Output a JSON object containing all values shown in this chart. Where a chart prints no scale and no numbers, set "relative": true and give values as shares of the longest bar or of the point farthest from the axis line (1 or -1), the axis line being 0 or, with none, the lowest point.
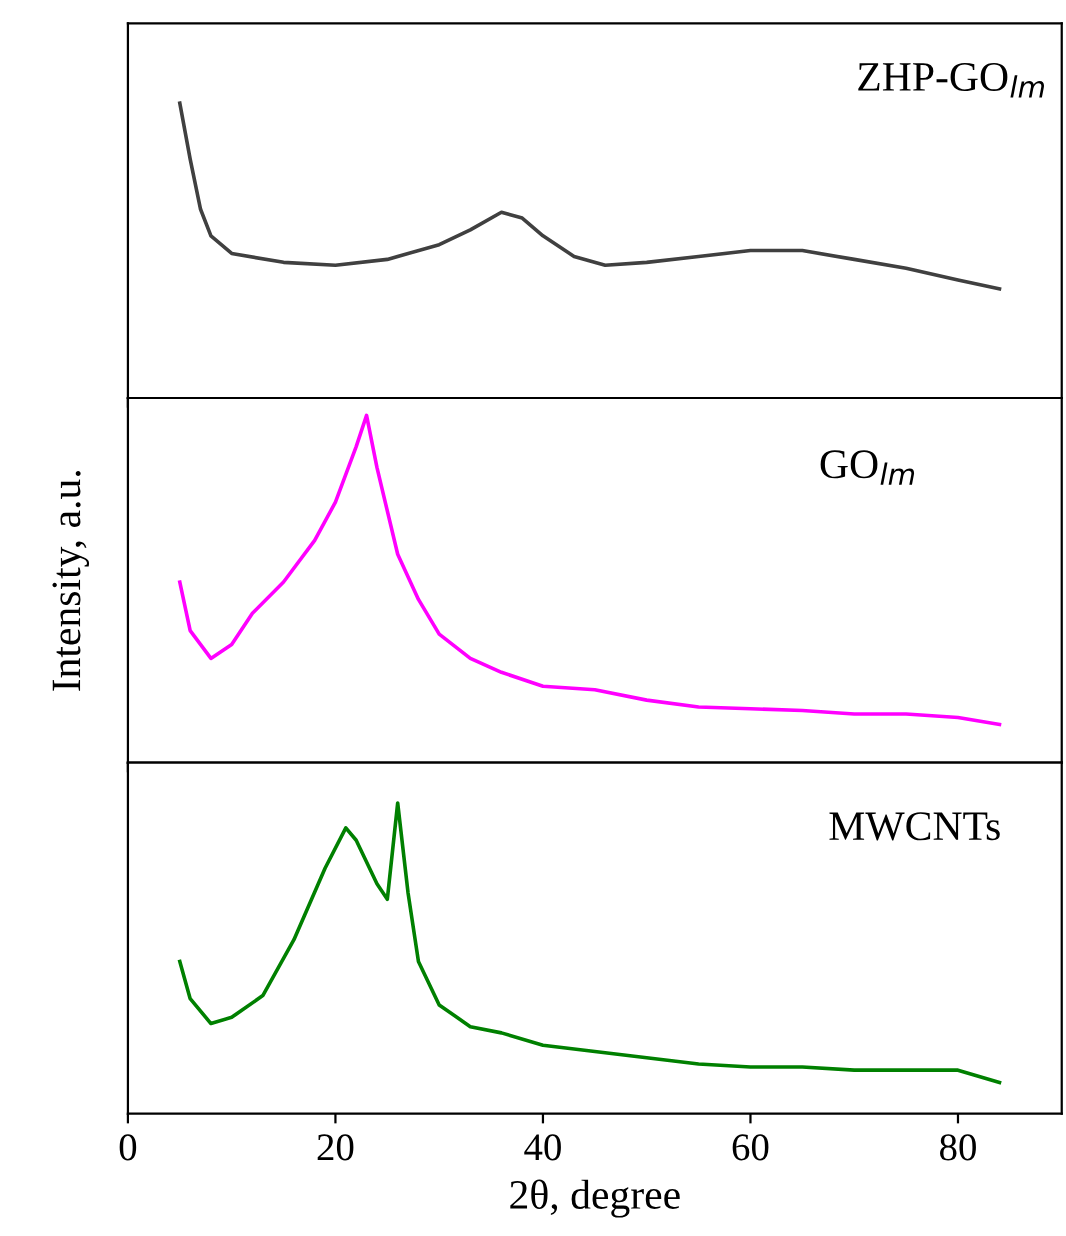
{
  "chart_data": [
    {
      "type": "line",
      "relative": true,
      "tick_labels": false,
      "xlim": [
        0,
        90
      ],
      "xticks": [
        0,
        20,
        40,
        60,
        80
      ],
      "annotations": [
        "ZHP-GO$_{lm}$"
      ],
      "x": [
        5,
        6,
        7,
        8,
        10,
        15,
        20,
        25,
        30,
        33,
        36,
        38,
        40,
        43,
        46,
        50,
        55,
        60,
        65,
        70,
        75,
        80,
        84
      ],
      "series": [
        {
          "color": "#404040",
          "values": [
            1.0,
            0.81,
            0.64,
            0.55,
            0.49,
            0.46,
            0.45,
            0.47,
            0.52,
            0.57,
            0.63,
            0.61,
            0.55,
            0.48,
            0.45,
            0.46,
            0.48,
            0.5,
            0.5,
            0.47,
            0.44,
            0.4,
            0.37
          ]
        }
      ]
    },
    {
      "type": "line",
      "relative": true,
      "tick_labels": false,
      "xlim": [
        0,
        90
      ],
      "xticks": [
        0,
        20,
        40,
        60,
        80
      ],
      "ylabel": "Intensity, a.u.",
      "annotations": [
        "GO$_{lm}$"
      ],
      "x": [
        5,
        6,
        8,
        10,
        12,
        15,
        18,
        20,
        22,
        23,
        24,
        26,
        28,
        30,
        33,
        36,
        40,
        45,
        50,
        55,
        60,
        65,
        70,
        75,
        80,
        84
      ],
      "series": [
        {
          "color": "#ff00ff",
          "values": [
            0.52,
            0.38,
            0.3,
            0.34,
            0.43,
            0.52,
            0.64,
            0.75,
            0.91,
            1.0,
            0.85,
            0.6,
            0.47,
            0.37,
            0.3,
            0.26,
            0.22,
            0.21,
            0.18,
            0.16,
            0.155,
            0.15,
            0.14,
            0.14,
            0.13,
            0.11
          ]
        }
      ]
    },
    {
      "type": "line",
      "relative": true,
      "tick_labels": "x",
      "xlim": [
        0,
        90
      ],
      "xticks": [
        0,
        20,
        40,
        60,
        80
      ],
      "xlabel": "2θ, degree",
      "annotations": [
        "MWCNTs"
      ],
      "x": [
        5,
        6,
        8,
        10,
        13,
        16,
        19,
        21,
        22,
        24,
        25,
        26,
        27,
        28,
        30,
        33,
        36,
        40,
        45,
        50,
        55,
        60,
        65,
        70,
        75,
        80,
        84
      ],
      "series": [
        {
          "color": "#008000",
          "values": [
            0.49,
            0.37,
            0.29,
            0.31,
            0.38,
            0.56,
            0.79,
            0.92,
            0.88,
            0.74,
            0.69,
            1.0,
            0.71,
            0.49,
            0.35,
            0.28,
            0.26,
            0.22,
            0.2,
            0.18,
            0.16,
            0.15,
            0.15,
            0.14,
            0.14,
            0.14,
            0.1
          ]
        }
      ]
    }
  ]
}
